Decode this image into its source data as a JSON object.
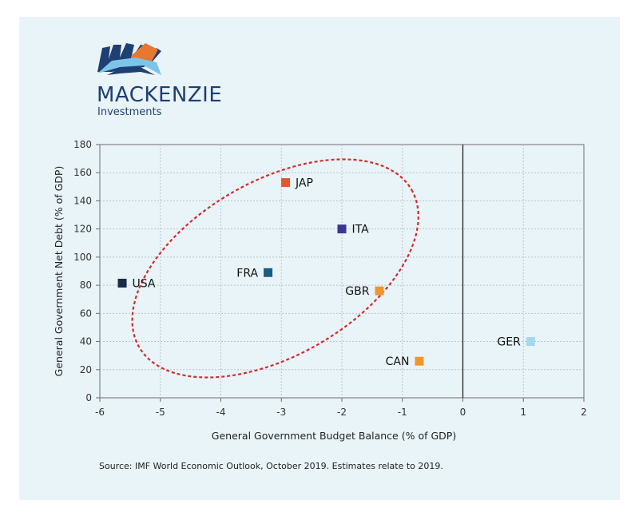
{
  "brand": {
    "name": "MACKENZIE",
    "sub": "Investments",
    "colors": {
      "navy": "#1f3f73",
      "orange": "#e8782f",
      "light_blue": "#7cc4e8"
    }
  },
  "source": "Source: IMF World Economic Outlook, October 2019. Estimates relate to 2019.",
  "chart_data": {
    "type": "scatter",
    "xlabel": "General Government Budget Balance (% of GDP)",
    "ylabel": "General Government Net Debt (% of GDP)",
    "xlim": [
      -6,
      2
    ],
    "ylim": [
      0,
      180
    ],
    "xticks": [
      "-6",
      "-5",
      "-4",
      "-3",
      "-2",
      "-1",
      "0",
      "1",
      "2"
    ],
    "yticks": [
      "0",
      "20",
      "40",
      "60",
      "80",
      "100",
      "120",
      "140",
      "160",
      "180"
    ],
    "grid": true,
    "points": [
      {
        "label": "USA",
        "x": -5.63,
        "y": 81.5,
        "color": "#1b2a47",
        "label_side": "right"
      },
      {
        "label": "JAP",
        "x": -2.93,
        "y": 153,
        "color": "#e8572a",
        "label_side": "right"
      },
      {
        "label": "ITA",
        "x": -2.0,
        "y": 120,
        "color": "#3d3596",
        "label_side": "right"
      },
      {
        "label": "FRA",
        "x": -3.22,
        "y": 89,
        "color": "#1d5b80",
        "label_side": "left"
      },
      {
        "label": "GBR",
        "x": -1.38,
        "y": 76,
        "color": "#f0962e",
        "label_side": "left"
      },
      {
        "label": "CAN",
        "x": -0.72,
        "y": 26,
        "color": "#f0962e",
        "label_side": "left"
      },
      {
        "label": "GER",
        "x": 1.12,
        "y": 40,
        "color": "#a4d8f2",
        "label_side": "left"
      }
    ],
    "annotations": [
      {
        "type": "ellipse",
        "style": "dashed",
        "color": "#d12c2c",
        "center": [
          -3.1,
          92
        ],
        "rx_data": 2.6,
        "ry_data": 62,
        "rotate_deg": -30
      }
    ]
  }
}
